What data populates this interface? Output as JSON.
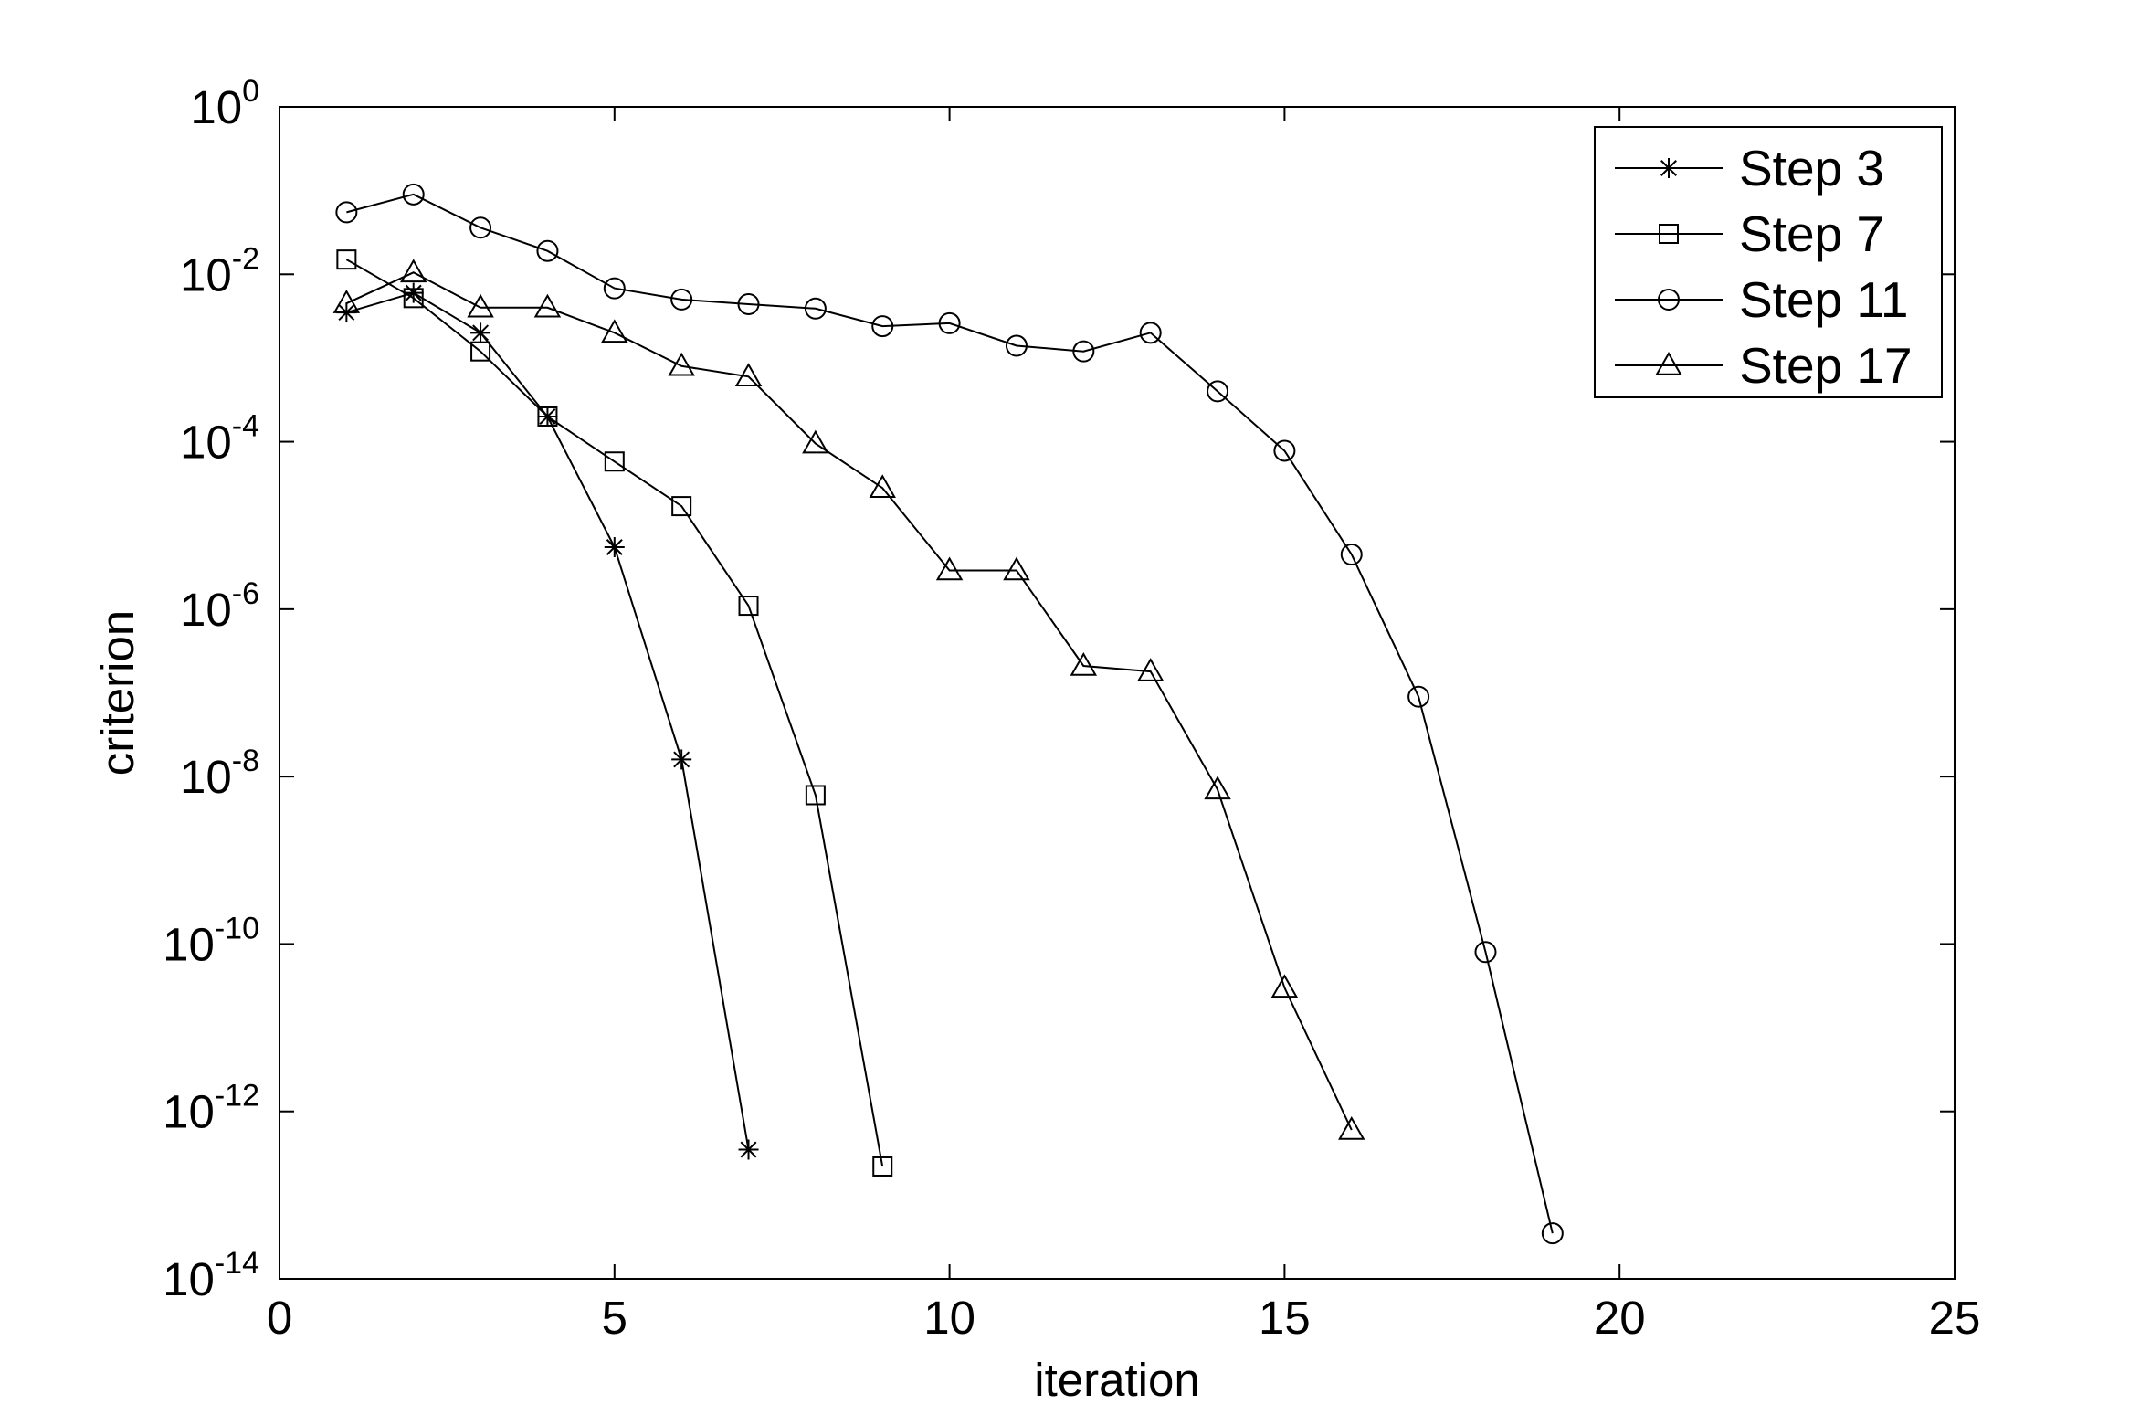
{
  "chart_data": {
    "type": "line",
    "xlabel": "iteration",
    "ylabel": "criterion",
    "xlim": [
      0,
      25
    ],
    "ylim": [
      1e-14,
      1
    ],
    "yscale": "log",
    "x_ticks": [
      0,
      5,
      10,
      15,
      20,
      25
    ],
    "y_ticks": [
      {
        "base": "10",
        "exp": "0",
        "value": 1
      },
      {
        "base": "10",
        "exp": "-2",
        "value": 0.01
      },
      {
        "base": "10",
        "exp": "-4",
        "value": 0.0001
      },
      {
        "base": "10",
        "exp": "-6",
        "value": 1e-06
      },
      {
        "base": "10",
        "exp": "-8",
        "value": 1e-08
      },
      {
        "base": "10",
        "exp": "-10",
        "value": 1e-10
      },
      {
        "base": "10",
        "exp": "-12",
        "value": 1e-12
      },
      {
        "base": "10",
        "exp": "-14",
        "value": 1e-14
      }
    ],
    "grid": false,
    "legend_position": "top-right",
    "series": [
      {
        "name": "Step 3",
        "marker": "star",
        "x": [
          1,
          2,
          3,
          4,
          5,
          6,
          7
        ],
        "y": [
          0.0035,
          0.006,
          0.002,
          0.0002,
          5.5e-06,
          1.6e-08,
          3.5e-13
        ]
      },
      {
        "name": "Step 7",
        "marker": "square",
        "x": [
          1,
          2,
          3,
          4,
          5,
          6,
          7,
          8,
          9
        ],
        "y": [
          0.015,
          0.0052,
          0.0012,
          0.0002,
          5.8e-05,
          1.7e-05,
          1.1e-06,
          6e-09,
          2.2e-13
        ]
      },
      {
        "name": "Step 11",
        "marker": "circle",
        "x": [
          1,
          2,
          3,
          4,
          5,
          6,
          7,
          8,
          9,
          10,
          11,
          12,
          13,
          14,
          15,
          16,
          17,
          18,
          19
        ],
        "y": [
          0.055,
          0.09,
          0.036,
          0.019,
          0.0068,
          0.005,
          0.0044,
          0.0039,
          0.0024,
          0.0026,
          0.0014,
          0.0012,
          0.002,
          0.0004,
          7.8e-05,
          4.5e-06,
          9e-08,
          8e-11,
          3.5e-14
        ]
      },
      {
        "name": "Step 17",
        "marker": "triangle",
        "x": [
          1,
          2,
          3,
          4,
          5,
          6,
          7,
          8,
          9,
          10,
          11,
          12,
          13,
          14,
          15,
          16
        ],
        "y": [
          0.0045,
          0.0105,
          0.004,
          0.004,
          0.002,
          0.0008,
          0.0006,
          9.5e-05,
          2.8e-05,
          2.9e-06,
          2.9e-06,
          2.1e-07,
          1.8e-07,
          7e-09,
          3e-11,
          6e-13
        ]
      }
    ]
  }
}
